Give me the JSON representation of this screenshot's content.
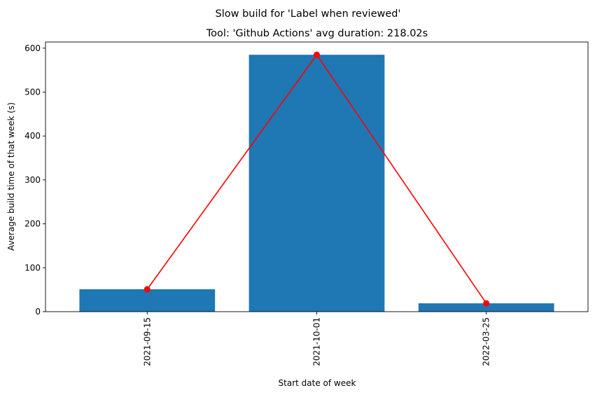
{
  "chart_data": {
    "type": "bar",
    "suptitle": "Slow build for 'Label when reviewed'",
    "title": "Tool: 'Github Actions' avg duration: 218.02s",
    "xlabel": "Start date of week",
    "ylabel": "Average build time of that week (s)",
    "categories": [
      "2021-09-15",
      "2021-10-01",
      "2022-03-25"
    ],
    "values": [
      51,
      585,
      19
    ],
    "line_values": [
      51,
      585,
      19
    ],
    "ylim": [
      0,
      614
    ],
    "yticks": [
      0,
      100,
      200,
      300,
      400,
      500,
      600
    ],
    "grid": false,
    "bar_color": "#1f77b4",
    "line_color": "#ff0000"
  }
}
